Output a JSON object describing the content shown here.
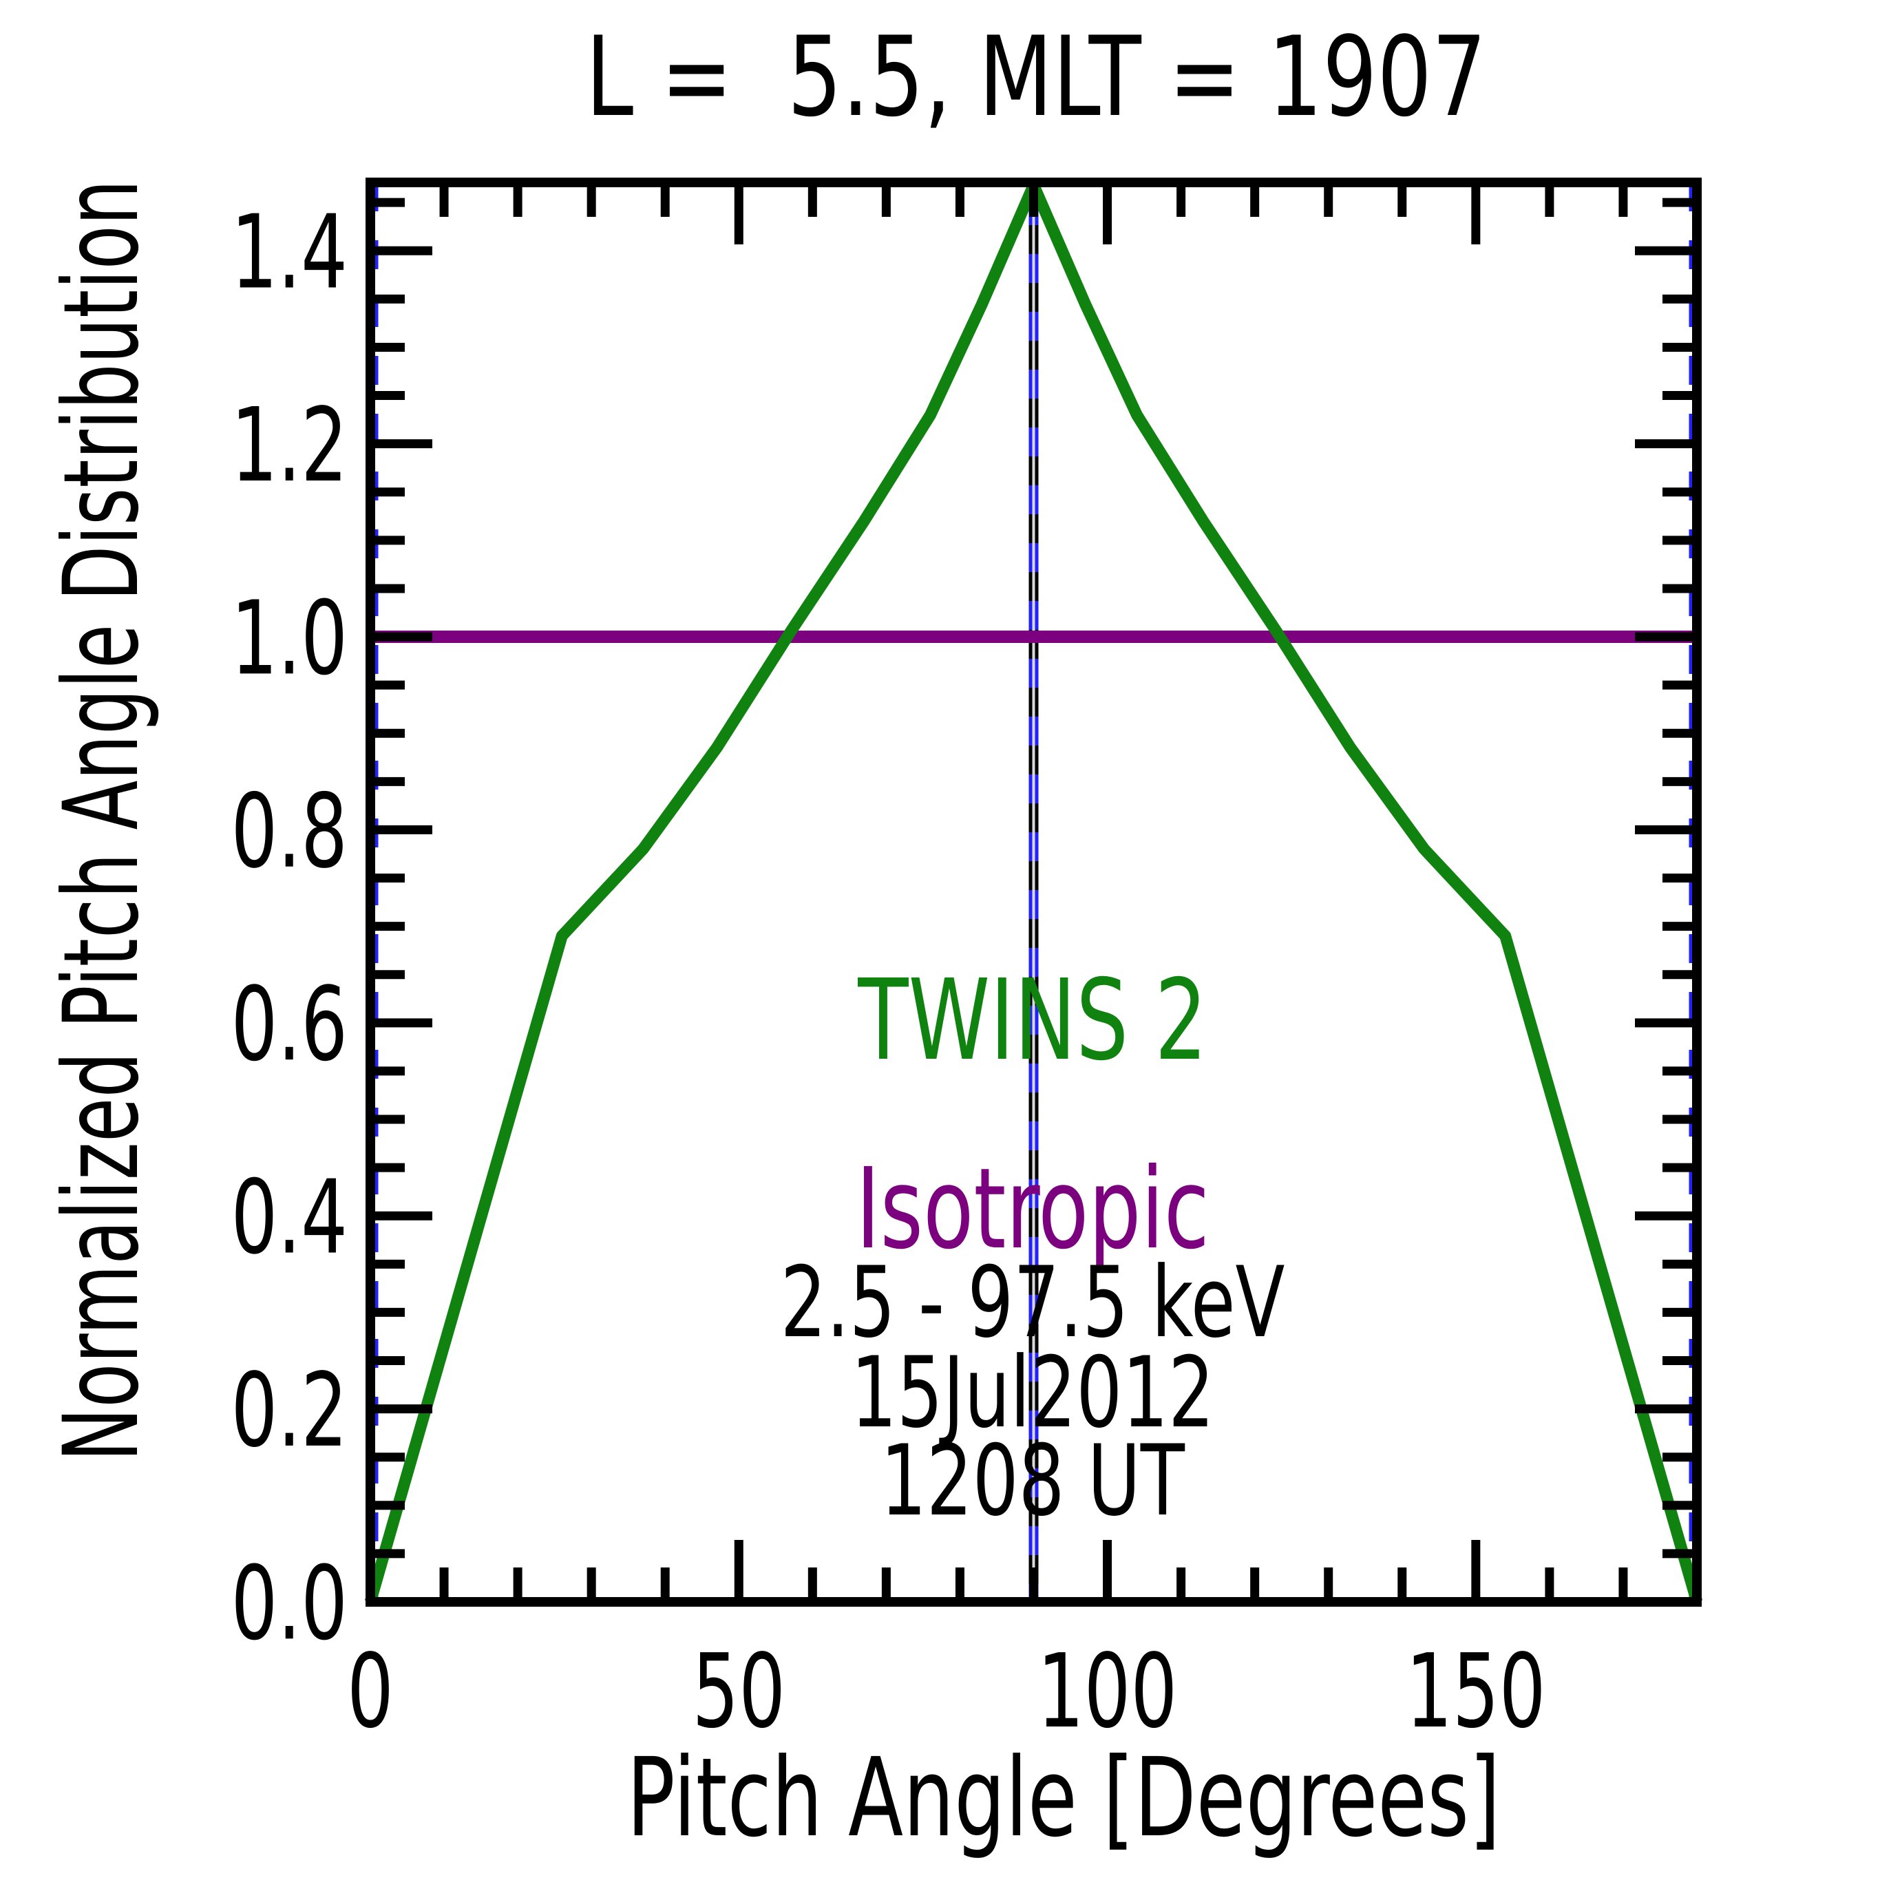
{
  "title": "L =  5.5, MLT = 1907",
  "annotations": [
    {
      "id": "twins2",
      "text": "TWINS 2",
      "color": "#108210"
    },
    {
      "id": "isotropic",
      "text": "Isotropic",
      "color": "#7b017e"
    },
    {
      "id": "energy",
      "text": "2.5 - 97.5 keV",
      "color": "#000000"
    },
    {
      "id": "date",
      "text": "15Jul2012",
      "color": "#000000"
    },
    {
      "id": "time",
      "text": "1208 UT",
      "color": "#000000"
    }
  ],
  "chart_data": {
    "type": "line",
    "title": "L =  5.5, MLT = 1907",
    "xlabel": "Pitch Angle [Degrees]",
    "ylabel": "Normalized Pitch Angle Distribution",
    "xlim": [
      0,
      180
    ],
    "ylim": [
      0,
      1.4708
    ],
    "grid": false,
    "legend_position": "inline-annotations",
    "x_major_ticks": [
      0,
      50,
      100,
      150
    ],
    "x_tick_labels": [
      "0",
      "50",
      "100",
      "150"
    ],
    "x_minor_step": 10,
    "y_major_ticks": [
      0,
      0.2,
      0.4,
      0.6,
      0.8,
      1.0,
      1.2,
      1.4
    ],
    "y_tick_labels": [
      "0.0",
      "0.2",
      "0.4",
      "0.6",
      "0.8",
      "1.0",
      "1.2",
      "1.4"
    ],
    "y_minor_step": 0.05,
    "frame_color": "#000000",
    "series": [
      {
        "name": "TWINS 2",
        "type": "line",
        "color": "#108210",
        "x": [
          0,
          26,
          37,
          47,
          57,
          67,
          76,
          83,
          90,
          97,
          104,
          113,
          123,
          133,
          143,
          154,
          180
        ],
        "y": [
          0.0,
          0.69,
          0.78,
          0.885,
          1.005,
          1.12,
          1.23,
          1.345,
          1.468,
          1.345,
          1.23,
          1.12,
          1.005,
          0.885,
          0.78,
          0.69,
          0.0
        ]
      },
      {
        "name": "Isotropic",
        "type": "hline",
        "color": "#7b017e",
        "y": 1.0
      },
      {
        "name": "90-degree-reference",
        "type": "vline",
        "x": 90,
        "line_color": "#000000",
        "dash_color": "#2222ff",
        "core_color": "#d9d9d9"
      },
      {
        "name": "axis-edge-reference",
        "type": "edge-vlines",
        "color": "#2222ff",
        "x": [
          0,
          180
        ]
      }
    ]
  }
}
